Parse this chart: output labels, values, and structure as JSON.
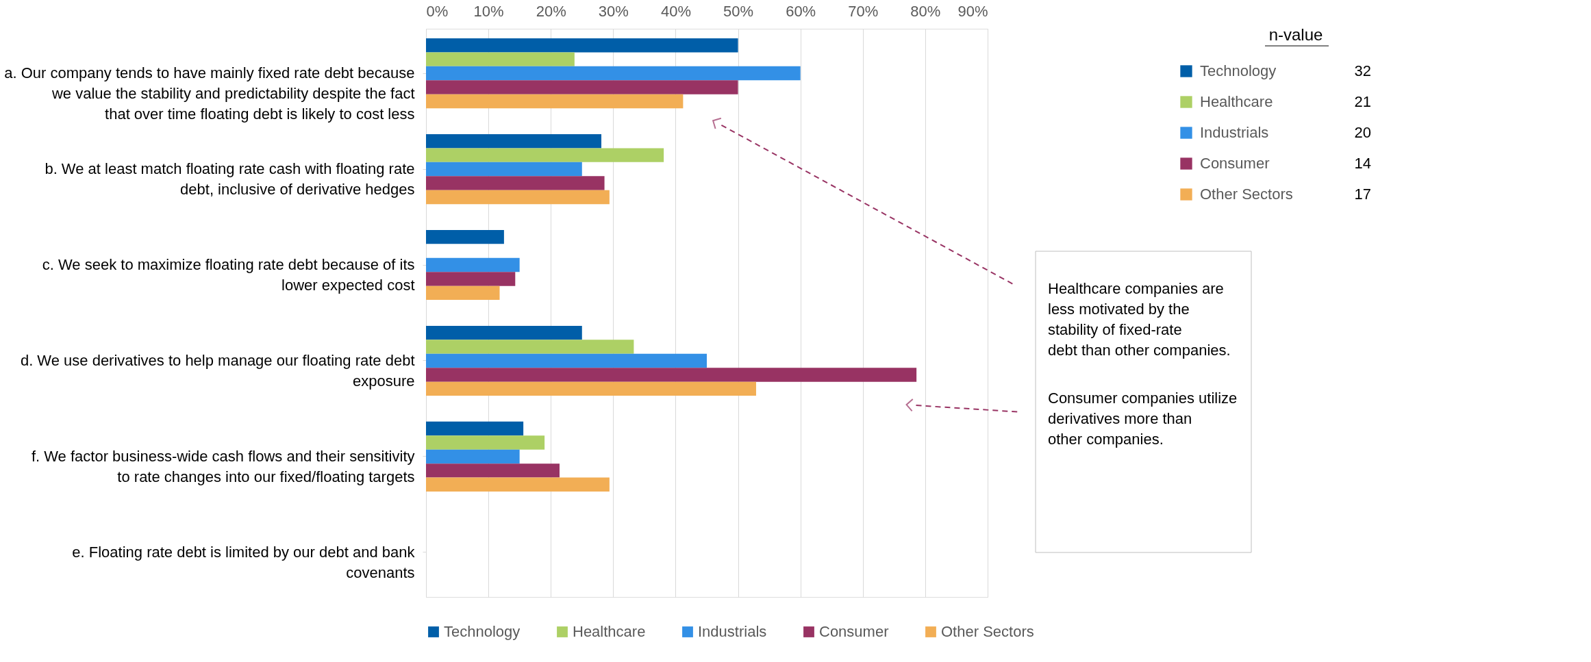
{
  "chart_data": {
    "type": "bar",
    "orientation": "horizontal",
    "categories": [
      "a. Our company tends to have mainly fixed rate debt because we value the stability and predictability despite the fact that over time floating debt is likely to cost less",
      "b. We at least match floating rate cash with floating rate debt, inclusive of derivative hedges",
      "c. We seek to maximize floating rate debt because of its lower expected cost",
      "d. We use derivatives to help manage our floating rate debt exposure",
      "f. We factor business-wide cash flows and their sensitivity to rate changes into our fixed/floating targets",
      "e. Floating rate debt is limited by our debt and bank covenants"
    ],
    "series": [
      {
        "name": "Technology",
        "color": "#005ea8",
        "values": [
          50,
          28.1,
          12.5,
          25,
          15.6,
          0
        ]
      },
      {
        "name": "Healthcare",
        "color": "#add065",
        "values": [
          23.8,
          38.1,
          0,
          33.3,
          19,
          0
        ]
      },
      {
        "name": "Industrials",
        "color": "#3390e6",
        "values": [
          60,
          25,
          15,
          45,
          15,
          0
        ]
      },
      {
        "name": "Consumer",
        "color": "#983363",
        "values": [
          50,
          28.6,
          14.3,
          78.6,
          21.4,
          0
        ]
      },
      {
        "name": "Other Sectors",
        "color": "#f2ae55",
        "values": [
          41.2,
          29.4,
          11.8,
          52.9,
          29.4,
          0
        ]
      }
    ],
    "xlim": [
      0,
      90
    ],
    "xticks": [
      {
        "value": 0,
        "label": "0%"
      },
      {
        "value": 10,
        "label": "10%"
      },
      {
        "value": 20,
        "label": "20%"
      },
      {
        "value": 30,
        "label": "30%"
      },
      {
        "value": 40,
        "label": "40%"
      },
      {
        "value": 50,
        "label": "50%"
      },
      {
        "value": 60,
        "label": "60%"
      },
      {
        "value": 70,
        "label": "70%"
      },
      {
        "value": 80,
        "label": "80%"
      },
      {
        "value": 90,
        "label": "90%"
      }
    ],
    "grid": "x",
    "legend": "bottom",
    "annotations": [
      "n-value",
      "32",
      "21",
      "20",
      "14",
      "17",
      "Healthcare companies are less motivated by the stability of fixed-rate debt than other companies.",
      "Consumer companies utilize derivatives more than other companies."
    ]
  }
}
